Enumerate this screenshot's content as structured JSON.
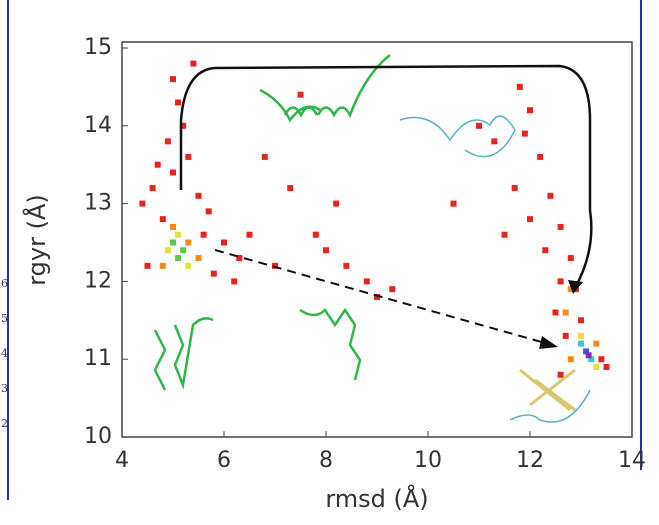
{
  "chart_data": {
    "type": "scatter",
    "xlabel": "rmsd (Å)",
    "ylabel": "rgyr (Å)",
    "xlim": [
      4,
      14
    ],
    "ylim": [
      10,
      15
    ],
    "xticks": [
      4,
      6,
      8,
      10,
      12,
      14
    ],
    "yticks": [
      10,
      11,
      12,
      13,
      14,
      15
    ],
    "margin_labels": [
      "6",
      "5",
      "4",
      "3",
      "2"
    ],
    "series": [
      {
        "color": "#e8231f",
        "x": [
          5.0,
          5.1,
          5.2,
          4.9,
          5.3,
          5.0,
          4.6,
          4.4,
          5.5,
          4.8,
          5.6,
          6.0,
          6.3,
          4.5,
          5.8,
          6.5,
          5.4,
          4.7,
          5.7,
          6.2,
          7.3,
          7.8,
          8.0,
          8.4,
          8.8,
          9.0,
          8.2,
          6.8,
          7.0,
          9.3,
          10.5,
          7.5,
          11.8,
          12.0,
          11.9,
          12.2,
          11.7,
          12.4,
          12.0,
          12.6,
          12.3,
          12.8,
          11.5,
          12.6,
          12.9,
          12.5,
          13.0,
          12.7,
          13.4,
          13.5,
          12.6,
          11.3,
          11.0
        ],
        "y": [
          14.6,
          14.3,
          14.0,
          13.8,
          13.6,
          13.4,
          13.2,
          13.0,
          13.1,
          12.8,
          12.6,
          12.5,
          12.3,
          12.2,
          12.1,
          12.6,
          14.8,
          13.5,
          12.9,
          12.0,
          13.2,
          12.6,
          12.4,
          12.2,
          12.0,
          11.8,
          13.0,
          13.6,
          12.2,
          11.9,
          13.0,
          14.4,
          14.5,
          14.2,
          13.9,
          13.6,
          13.2,
          13.1,
          12.8,
          12.7,
          12.4,
          12.3,
          12.6,
          12.0,
          11.9,
          11.6,
          11.5,
          11.3,
          11.0,
          10.9,
          10.8,
          13.8,
          14.0
        ]
      },
      {
        "color": "#f48a1c",
        "x": [
          5.0,
          5.3,
          4.8,
          5.5,
          12.8,
          12.7,
          13.3,
          12.8
        ],
        "y": [
          12.7,
          12.5,
          12.2,
          12.3,
          11.9,
          11.6,
          11.2,
          11.0
        ]
      },
      {
        "color": "#e8e03a",
        "x": [
          5.1,
          4.9,
          5.3,
          13.0,
          13.3
        ],
        "y": [
          12.6,
          12.4,
          12.2,
          11.3,
          10.9
        ]
      },
      {
        "color": "#5cc84a",
        "x": [
          5.0,
          5.2,
          5.1
        ],
        "y": [
          12.5,
          12.4,
          12.3
        ]
      },
      {
        "color": "#36c8d8",
        "x": [
          13.0,
          13.2
        ],
        "y": [
          11.2,
          11.0
        ]
      },
      {
        "color": "#3a5ae0",
        "x": [
          13.1
        ],
        "y": [
          11.1
        ]
      },
      {
        "color": "#8a2ac0",
        "x": [
          13.15
        ],
        "y": [
          11.05
        ]
      }
    ]
  }
}
